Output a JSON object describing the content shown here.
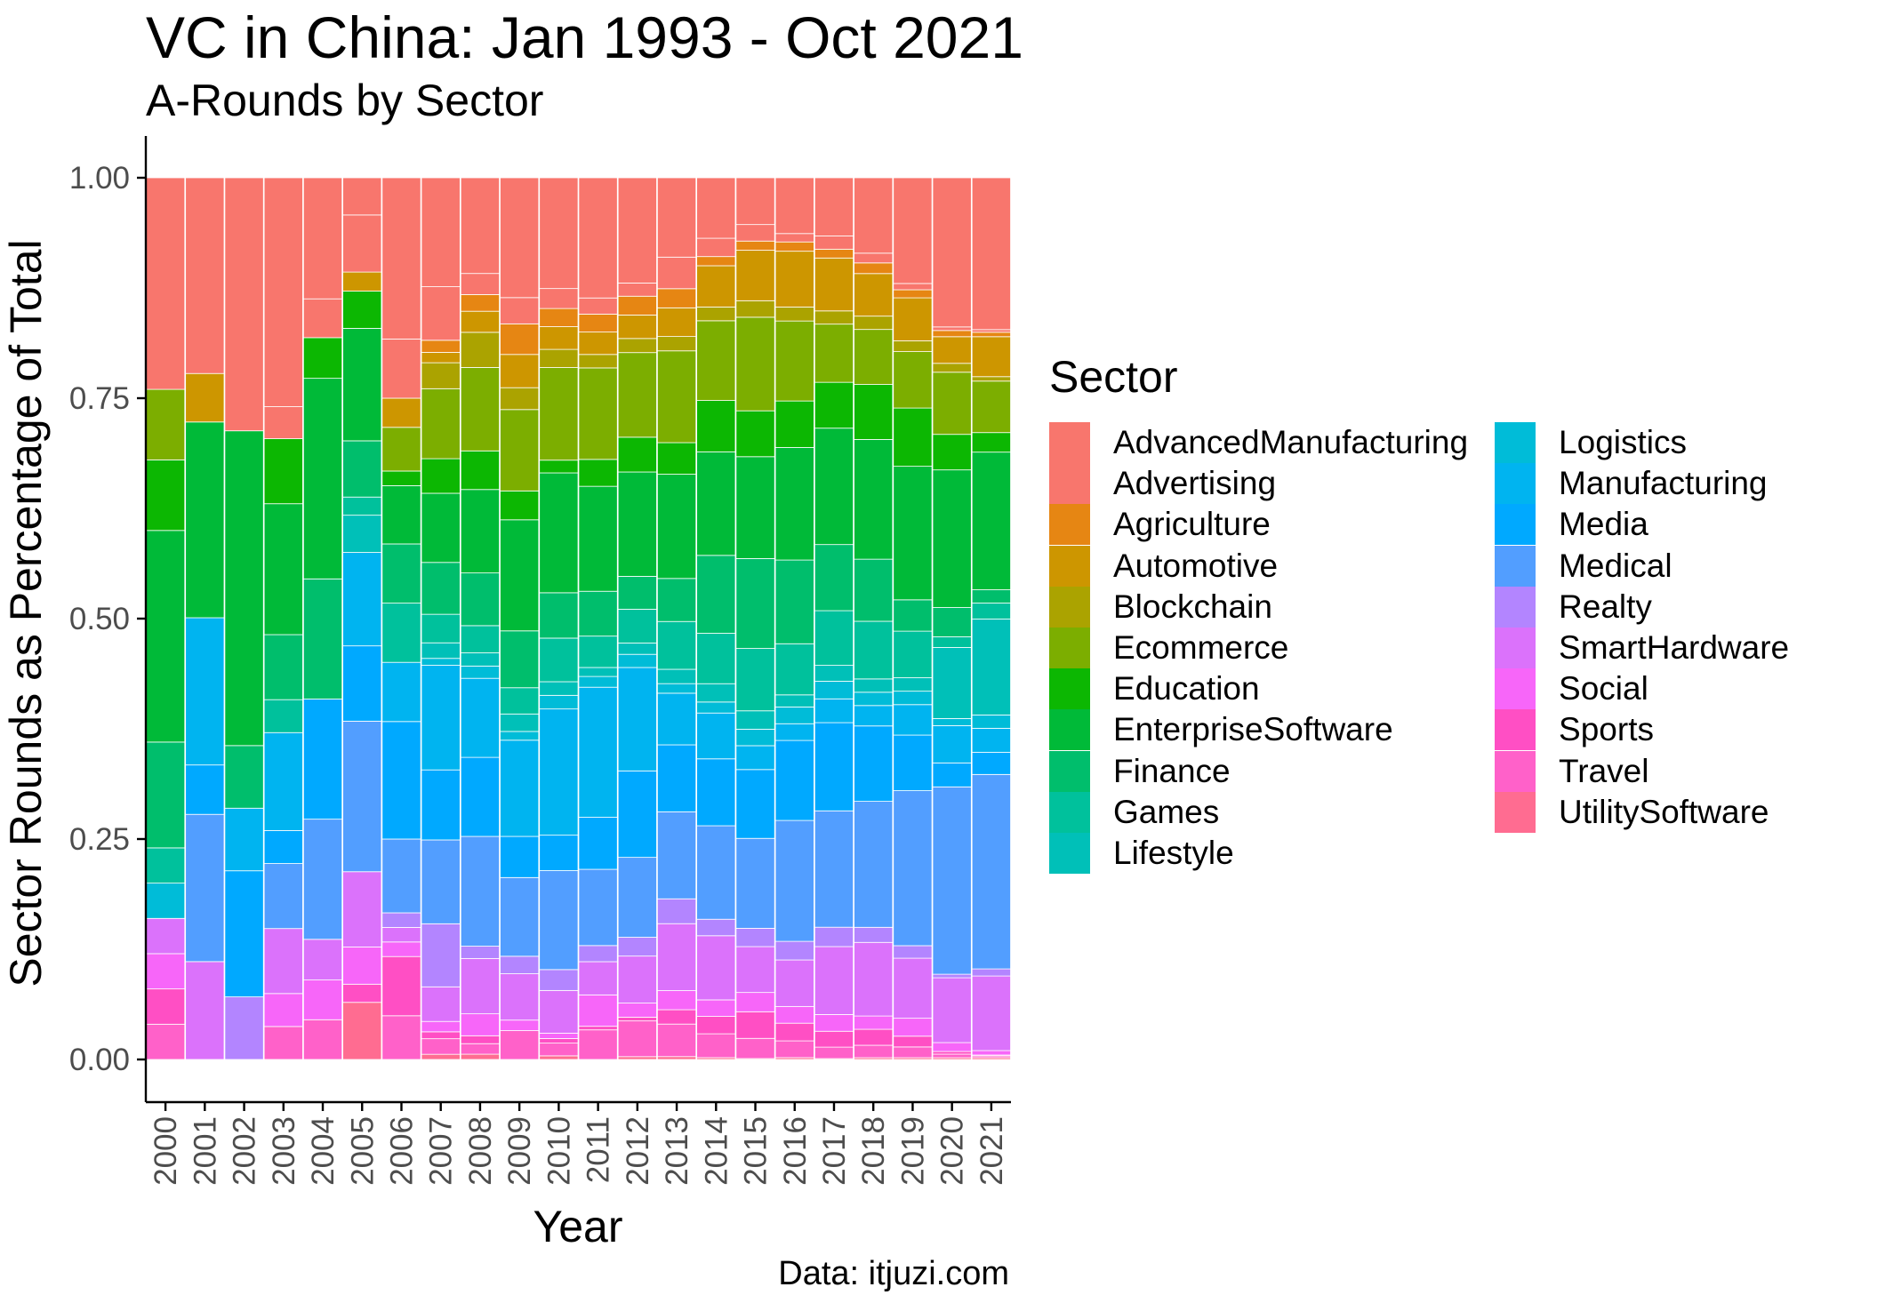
{
  "title": "VC in China: Jan 1993 - Oct 2021",
  "subtitle": "A-Rounds by Sector",
  "caption": "Data: itjuzi.com",
  "chart_data": {
    "type": "bar",
    "stacked": true,
    "xlabel": "Year",
    "ylabel": "Sector Rounds as Percentage of Total",
    "ylim": [
      0,
      1
    ],
    "yticks": [
      "0.00",
      "0.25",
      "0.50",
      "0.75",
      "1.00"
    ],
    "categories": [
      "2000",
      "2001",
      "2002",
      "2003",
      "2004",
      "2005",
      "2006",
      "2007",
      "2008",
      "2009",
      "2010",
      "2011",
      "2012",
      "2013",
      "2014",
      "2015",
      "2016",
      "2017",
      "2018",
      "2019",
      "2020",
      "2021"
    ],
    "legend_title": "Sector",
    "legend_position": "right",
    "grid": false,
    "series": [
      {
        "name": "UtilitySoftware",
        "color": "#FF6C91",
        "values": [
          0,
          0,
          0,
          0,
          0,
          0.066,
          0,
          0.006,
          0.006,
          0,
          0.004,
          0,
          0.003,
          0.003,
          0.002,
          0.001,
          0.002,
          0.001,
          0.002,
          0.002,
          0.002,
          0.002
        ]
      },
      {
        "name": "Travel",
        "color": "#FF61C9",
        "values": [
          0.04,
          0,
          0,
          0.036,
          0.043,
          0,
          0.048,
          0.018,
          0.012,
          0.033,
          0.014,
          0.033,
          0.038,
          0.034,
          0.026,
          0.022,
          0.018,
          0.013,
          0.014,
          0.012,
          0.004,
          0.002
        ]
      },
      {
        "name": "Sports",
        "color": "#FF4FC4",
        "values": [
          0.04,
          0,
          0,
          0,
          0,
          0.021,
          0.065,
          0.008,
          0.009,
          0,
          0.005,
          0.004,
          0.004,
          0.015,
          0.019,
          0.029,
          0.019,
          0.018,
          0.018,
          0.012,
          0.003,
          0.001
        ]
      },
      {
        "name": "Social",
        "color": "#F766F9",
        "values": [
          0.04,
          0,
          0,
          0.036,
          0.043,
          0.043,
          0.016,
          0.012,
          0.025,
          0.012,
          0.006,
          0.035,
          0.015,
          0.02,
          0.018,
          0.021,
          0.018,
          0.019,
          0.015,
          0.02,
          0.01,
          0.005
        ]
      },
      {
        "name": "SmartHardware",
        "color": "#DB72FB",
        "values": [
          0.04,
          0.111,
          0,
          0.071,
          0.044,
          0.087,
          0.016,
          0.04,
          0.063,
          0.053,
          0.047,
          0.037,
          0.05,
          0.07,
          0.07,
          0.05,
          0.05,
          0.077,
          0.083,
          0.067,
          0.073,
          0.084
        ]
      },
      {
        "name": "Realty",
        "color": "#B385FF",
        "values": [
          0,
          0,
          0.071,
          0,
          0,
          0,
          0.016,
          0.073,
          0.014,
          0.02,
          0.023,
          0.018,
          0.02,
          0.026,
          0.018,
          0.02,
          0.02,
          0.022,
          0.017,
          0.014,
          0.004,
          0.008
        ]
      },
      {
        "name": "Medical",
        "color": "#529EFF",
        "values": [
          0,
          0.167,
          0,
          0.071,
          0.13,
          0.174,
          0.081,
          0.097,
          0.125,
          0.09,
          0.109,
          0.085,
          0.085,
          0.091,
          0.102,
          0.098,
          0.13,
          0.132,
          0.142,
          0.173,
          0.211,
          0.219
        ]
      },
      {
        "name": "Media",
        "color": "#00A9FF",
        "values": [
          0,
          0.056,
          0.143,
          0.036,
          0.13,
          0.087,
          0.129,
          0.081,
          0.09,
          0.047,
          0.039,
          0.058,
          0.092,
          0.07,
          0.073,
          0.075,
          0.086,
          0.1,
          0.085,
          0.062,
          0.027,
          0.025
        ]
      },
      {
        "name": "Manufacturing",
        "color": "#00B4F0",
        "values": [
          0,
          0.167,
          0.071,
          0.107,
          0,
          0.108,
          0.065,
          0.121,
          0.09,
          0.11,
          0.139,
          0.145,
          0.11,
          0.054,
          0.05,
          0.026,
          0.018,
          0.027,
          0.023,
          0.034,
          0.042,
          0.027
        ]
      },
      {
        "name": "Logistics",
        "color": "#00BCD8",
        "values": [
          0.04,
          0,
          0,
          0,
          0,
          0,
          0,
          0.008,
          0.014,
          0.01,
          0.015,
          0.012,
          0.014,
          0.01,
          0.012,
          0.018,
          0.018,
          0.02,
          0.015,
          0.015,
          0.008,
          0.015
        ]
      },
      {
        "name": "Lifestyle",
        "color": "#00C0B8",
        "values": [
          0,
          0,
          0,
          0,
          0,
          0.043,
          0,
          0.018,
          0.015,
          0.02,
          0.015,
          0.01,
          0.012,
          0.015,
          0.02,
          0.02,
          0.013,
          0.018,
          0.015,
          0.015,
          0.08,
          0.108
        ]
      },
      {
        "name": "Games",
        "color": "#00C19C",
        "values": [
          0.04,
          0,
          0,
          0.036,
          0,
          0.021,
          0.065,
          0.033,
          0.031,
          0.03,
          0.048,
          0.035,
          0.036,
          0.05,
          0.055,
          0.068,
          0.055,
          0.062,
          0.065,
          0.052,
          0.012,
          0.018
        ]
      },
      {
        "name": "Finance",
        "color": "#00BE6C",
        "values": [
          0.12,
          0,
          0.071,
          0.071,
          0.13,
          0.065,
          0.065,
          0.06,
          0.06,
          0.065,
          0.05,
          0.05,
          0.035,
          0.045,
          0.085,
          0.098,
          0.09,
          0.075,
          0.07,
          0.035,
          0.033,
          0.015
        ]
      },
      {
        "name": "EnterpriseSoftware",
        "color": "#00BA38",
        "values": [
          0.24,
          0.222,
          0.357,
          0.143,
          0.217,
          0.13,
          0.064,
          0.08,
          0.095,
          0.127,
          0.132,
          0.117,
          0.111,
          0.109,
          0.113,
          0.111,
          0.121,
          0.132,
          0.135,
          0.149,
          0.155,
          0.155
        ]
      },
      {
        "name": "Education",
        "color": "#0CB702",
        "values": [
          0.08,
          0,
          0,
          0.071,
          0.044,
          0.043,
          0.016,
          0.04,
          0.044,
          0.033,
          0.014,
          0.03,
          0.037,
          0.033,
          0.056,
          0.05,
          0.05,
          0.052,
          0.062,
          0.065,
          0.04,
          0.022
        ]
      },
      {
        "name": "Ecommerce",
        "color": "#7CAE00",
        "values": [
          0.08,
          0,
          0,
          0,
          0,
          0,
          0.048,
          0.081,
          0.095,
          0.093,
          0.102,
          0.102,
          0.09,
          0.096,
          0.087,
          0.102,
          0.086,
          0.066,
          0.062,
          0.063,
          0.07,
          0.058
        ]
      },
      {
        "name": "Blockchain",
        "color": "#ABA300",
        "values": [
          0,
          0,
          0,
          0,
          0,
          0,
          0,
          0.03,
          0.04,
          0.025,
          0.02,
          0.015,
          0.015,
          0.015,
          0.015,
          0.018,
          0.015,
          0.015,
          0.015,
          0.012,
          0.01,
          0.005
        ]
      },
      {
        "name": "Automotive",
        "color": "#CD9600",
        "values": [
          0,
          0.055,
          0,
          0,
          0,
          0.022,
          0.032,
          0.012,
          0.024,
          0.038,
          0.025,
          0.025,
          0.025,
          0.03,
          0.045,
          0.055,
          0.06,
          0.06,
          0.048,
          0.048,
          0.03,
          0.045
        ]
      },
      {
        "name": "Agriculture",
        "color": "#E68613",
        "values": [
          0,
          0,
          0,
          0,
          0,
          0,
          0,
          0.014,
          0.019,
          0.035,
          0.02,
          0.02,
          0.02,
          0.02,
          0.01,
          0.01,
          0.01,
          0.01,
          0.012,
          0.009,
          0.007,
          0.005
        ]
      },
      {
        "name": "Advertising",
        "color": "#F8766D0",
        "display_color": "#F8766D",
        "values": [
          0,
          0,
          0,
          0.035,
          0.042,
          0.066,
          0.065,
          0.062,
          0.024,
          0.03,
          0.022,
          0.018,
          0.014,
          0.033,
          0.02,
          0.018,
          0.009,
          0.015,
          0.011,
          0.007,
          0.004,
          0.003
        ]
      },
      {
        "name": "AdvancedManufacturing",
        "color": "#F8766D",
        "values": [
          0.24,
          0.222,
          0.287,
          0.25,
          0.131,
          0.043,
          0.177,
          0.126,
          0.109,
          0.137,
          0.122,
          0.134,
          0.112,
          0.083,
          0.066,
          0.051,
          0.06,
          0.066,
          0.085,
          0.118,
          0.168,
          0.171
        ]
      }
    ]
  }
}
